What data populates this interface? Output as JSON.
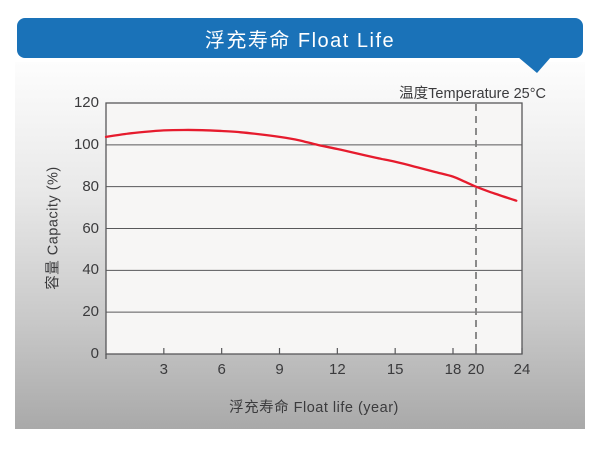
{
  "banner": {
    "title": "浮充寿命 Float Life",
    "color": "#1a72b8"
  },
  "chart_data": {
    "type": "line",
    "title": "浮充寿命 Float Life",
    "xlabel": "浮充寿命  Float life (year)",
    "ylabel": "容量 Capacity (%)",
    "annotation": "温度Temperature 25°C",
    "xlim": [
      0,
      24
    ],
    "ylim": [
      0,
      120
    ],
    "x_ticks": [
      3,
      6,
      9,
      12,
      15,
      18,
      20,
      24
    ],
    "y_ticks": [
      0,
      20,
      40,
      60,
      80,
      100,
      120
    ],
    "grid": "horizontal",
    "reference_line": {
      "x": 20,
      "style": "dashed",
      "color": "#7f7f7f"
    },
    "series": [
      {
        "name": "capacity-vs-float-life",
        "color": "#e61b2d",
        "points": [
          [
            0,
            103.8
          ],
          [
            1,
            105.2
          ],
          [
            2,
            106.2
          ],
          [
            3,
            106.9
          ],
          [
            4,
            107.1
          ],
          [
            5,
            107.0
          ],
          [
            6,
            106.6
          ],
          [
            7,
            106.0
          ],
          [
            8,
            105.0
          ],
          [
            9,
            103.8
          ],
          [
            10,
            102.2
          ],
          [
            11,
            99.9
          ],
          [
            12,
            98.0
          ],
          [
            13,
            95.9
          ],
          [
            14,
            93.8
          ],
          [
            15,
            91.9
          ],
          [
            16,
            89.6
          ],
          [
            17,
            87.2
          ],
          [
            18,
            84.8
          ],
          [
            19,
            82.4
          ],
          [
            20,
            80.0
          ],
          [
            21,
            77.9
          ],
          [
            22,
            76.0
          ],
          [
            23,
            74.2
          ],
          [
            23.5,
            73.3
          ]
        ]
      }
    ],
    "colors": {
      "axis_line": "#58585a",
      "grid_line": "#58585a",
      "text": "#3b3b3d",
      "plot_background": "#f7f6f5"
    }
  }
}
